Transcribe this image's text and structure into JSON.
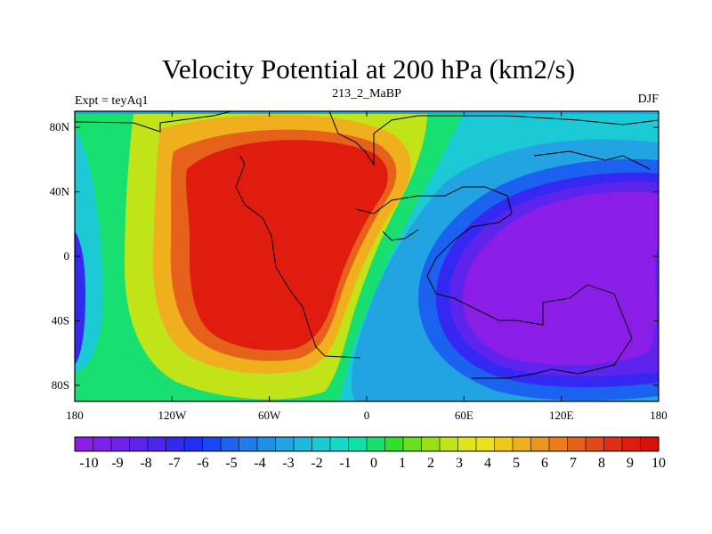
{
  "chart_data": {
    "type": "heatmap",
    "title": "Velocity Potential at 200 hPa (km2/s)",
    "left_label": "Expt = teyAq1",
    "center_label": "213_2_MaBP",
    "right_label": "DJF",
    "xlim": [
      -180,
      180
    ],
    "ylim": [
      -90,
      90
    ],
    "x_ticks": [
      {
        "value": -180,
        "label": "180"
      },
      {
        "value": -120,
        "label": "120W"
      },
      {
        "value": -60,
        "label": "60W"
      },
      {
        "value": 0,
        "label": "0"
      },
      {
        "value": 60,
        "label": "60E"
      },
      {
        "value": 120,
        "label": "120E"
      },
      {
        "value": 180,
        "label": "180"
      }
    ],
    "y_ticks": [
      {
        "value": 80,
        "label": "80N"
      },
      {
        "value": 40,
        "label": "40N"
      },
      {
        "value": 0,
        "label": "0"
      },
      {
        "value": -40,
        "label": "40S"
      },
      {
        "value": -80,
        "label": "80S"
      }
    ],
    "field_centers": [
      {
        "name": "maximum",
        "lon": -55,
        "lat": 20,
        "value": 10
      },
      {
        "name": "minimum",
        "lon": 115,
        "lat": -15,
        "value": -10
      }
    ],
    "colorbar": {
      "min": -10,
      "max": 10,
      "step": 0.5,
      "labels": [
        "-10",
        "-9",
        "-8",
        "-7",
        "-6",
        "-5",
        "-4",
        "-3",
        "-2",
        "-1",
        "0",
        "1",
        "2",
        "3",
        "4",
        "5",
        "6",
        "7",
        "8",
        "9",
        "10"
      ],
      "colors": [
        "#8a1ee6",
        "#7d20e8",
        "#6e22ea",
        "#5c24ec",
        "#4a26ee",
        "#3428f2",
        "#222ef4",
        "#1c48f4",
        "#1c62f0",
        "#1e7cec",
        "#2090e6",
        "#22a4e2",
        "#1eb8dc",
        "#1ccad6",
        "#14d8c8",
        "#10e0aa",
        "#18e070",
        "#30e030",
        "#68e020",
        "#98e018",
        "#c0e418",
        "#e0e41a",
        "#ece01a",
        "#f0c81c",
        "#f0b01e",
        "#ec961e",
        "#ec7c1c",
        "#e6621a",
        "#e44818",
        "#e22e14",
        "#e01c0e",
        "#dc0e08"
      ]
    }
  }
}
